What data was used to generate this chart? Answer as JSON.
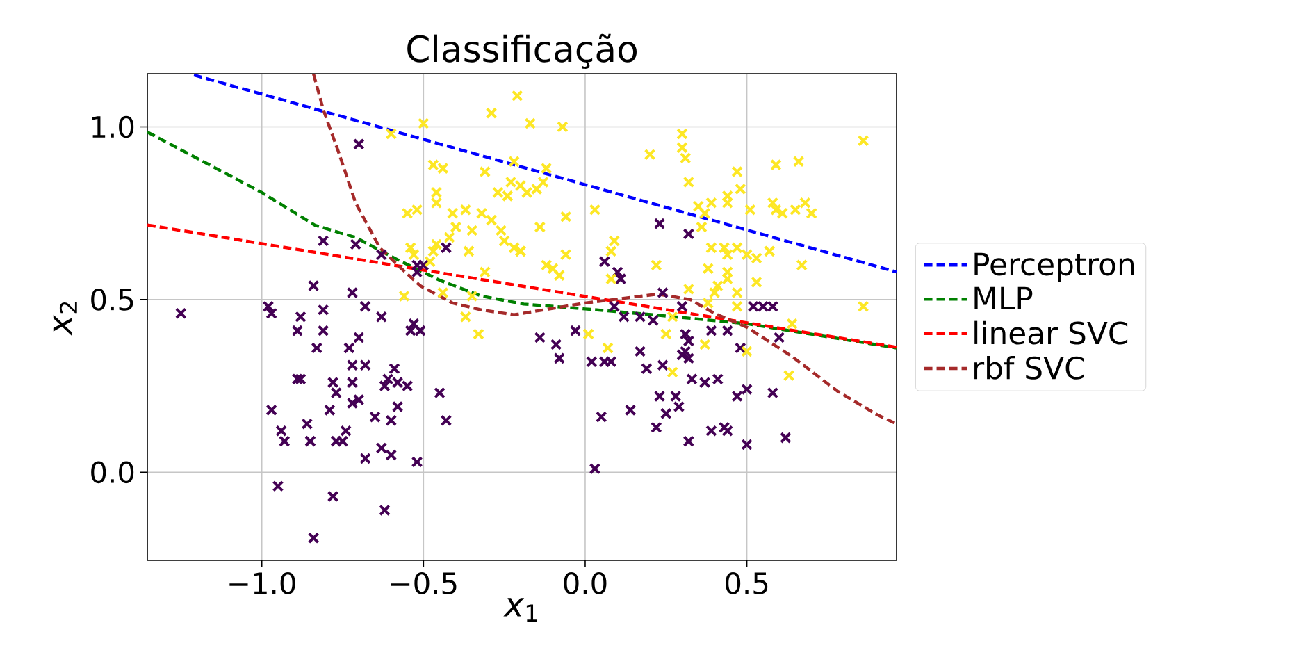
{
  "chart_data": {
    "type": "scatter",
    "title": "Classificação",
    "xlabel": "*x*$_{1}$",
    "ylabel": "*x*$_{2}$",
    "xlim": [
      -1.354,
      0.963
    ],
    "ylim": [
      -0.255,
      1.154
    ],
    "xticks": [
      {
        "value": -1.0,
        "label": "−1.0"
      },
      {
        "value": -0.5,
        "label": "−0.5"
      },
      {
        "value": 0.0,
        "label": "0.0"
      },
      {
        "value": 0.5,
        "label": "0.5"
      }
    ],
    "yticks": [
      {
        "value": 0.0,
        "label": "0.0"
      },
      {
        "value": 0.5,
        "label": "0.5"
      },
      {
        "value": 1.0,
        "label": "1.0"
      }
    ],
    "grid": true,
    "legend": "right",
    "series": [
      {
        "marker": "cross",
        "color": "#440154",
        "x": [
          -1.25,
          -0.98,
          -0.97,
          -0.88,
          -0.81,
          -0.89,
          -0.81,
          -0.68,
          -0.63,
          -0.7,
          -0.73,
          -0.83,
          -0.53,
          -0.54,
          -0.51,
          -0.89,
          -0.88,
          -0.78,
          -0.77,
          -0.72,
          -0.72,
          -0.68,
          -0.59,
          -0.61,
          -0.62,
          -0.58,
          -0.55,
          -0.72,
          -0.7,
          -0.79,
          -0.97,
          -0.86,
          -0.94,
          -0.93,
          -0.85,
          -0.77,
          -0.75,
          -0.74,
          -0.65,
          -0.6,
          -0.58,
          -0.63,
          -0.6,
          -0.68,
          -0.52,
          -0.45,
          -0.43,
          -0.95,
          -0.78,
          -0.62,
          -0.84,
          -0.7,
          -0.81,
          -0.71,
          -0.63,
          -0.43,
          -0.52,
          -0.5,
          -0.52,
          -0.84,
          -0.72,
          -0.14,
          -0.09,
          -0.08,
          -0.03,
          0.02,
          0.06,
          0.08,
          0.09,
          0.12,
          0.17,
          0.19,
          0.17,
          0.21,
          0.24,
          0.31,
          0.32,
          0.3,
          0.32,
          0.31,
          0.33,
          0.37,
          0.41,
          0.39,
          0.44,
          0.23,
          0.28,
          0.29,
          0.25,
          0.22,
          0.14,
          0.05,
          0.32,
          0.39,
          0.43,
          0.44,
          0.5,
          0.47,
          0.5,
          0.58,
          0.62,
          0.6,
          0.48,
          0.03,
          0.52,
          0.55,
          0.58,
          0.23,
          0.32,
          0.06,
          0.1,
          0.11,
          0.24,
          0.3
        ],
        "values": [
          0.46,
          0.48,
          0.46,
          0.45,
          0.47,
          0.41,
          0.41,
          0.48,
          0.45,
          0.39,
          0.36,
          0.36,
          0.43,
          0.41,
          0.41,
          0.27,
          0.27,
          0.26,
          0.23,
          0.26,
          0.31,
          0.31,
          0.3,
          0.27,
          0.25,
          0.26,
          0.25,
          0.2,
          0.21,
          0.18,
          0.18,
          0.14,
          0.12,
          0.09,
          0.09,
          0.09,
          0.09,
          0.12,
          0.16,
          0.15,
          0.19,
          0.07,
          0.05,
          0.04,
          0.03,
          0.23,
          0.15,
          -0.04,
          -0.07,
          -0.11,
          -0.19,
          0.95,
          0.67,
          0.66,
          0.63,
          0.65,
          0.6,
          0.6,
          0.58,
          0.54,
          0.52,
          0.39,
          0.37,
          0.33,
          0.41,
          0.32,
          0.32,
          0.32,
          0.48,
          0.45,
          0.35,
          0.3,
          0.45,
          0.44,
          0.31,
          0.4,
          0.38,
          0.34,
          0.33,
          0.35,
          0.27,
          0.26,
          0.27,
          0.41,
          0.41,
          0.22,
          0.22,
          0.19,
          0.17,
          0.13,
          0.18,
          0.16,
          0.09,
          0.12,
          0.13,
          0.12,
          0.08,
          0.22,
          0.24,
          0.23,
          0.1,
          0.39,
          0.36,
          0.01,
          0.48,
          0.48,
          0.48,
          0.72,
          0.69,
          0.61,
          0.58,
          0.56,
          0.52,
          0.48
        ]
      },
      {
        "marker": "cross",
        "color": "#fde725",
        "x": [
          -0.21,
          -0.29,
          -0.5,
          -0.6,
          -0.47,
          -0.44,
          -0.31,
          -0.46,
          -0.46,
          -0.55,
          -0.52,
          -0.41,
          -0.37,
          -0.4,
          -0.32,
          -0.29,
          -0.35,
          -0.27,
          -0.23,
          -0.24,
          -0.26,
          -0.25,
          -0.22,
          -0.2,
          -0.36,
          -0.42,
          -0.46,
          -0.54,
          -0.53,
          -0.47,
          -0.48,
          -0.31,
          -0.44,
          -0.56,
          -0.35,
          -0.22,
          -0.17,
          -0.07,
          0.3,
          0.3,
          0.31,
          0.2,
          0.32,
          0.47,
          0.59,
          0.66,
          0.86,
          0.48,
          0.44,
          0.44,
          0.39,
          0.35,
          0.37,
          0.51,
          0.58,
          0.59,
          0.61,
          0.65,
          0.68,
          0.7,
          -0.12,
          -0.2,
          -0.18,
          -0.15,
          -0.13,
          -0.06,
          -0.14,
          0.03,
          0.09,
          0.08,
          -0.06,
          -0.12,
          -0.1,
          -0.08,
          -0.2,
          0.22,
          0.36,
          0.39,
          0.43,
          0.47,
          0.5,
          0.44,
          0.53,
          0.57,
          0.67,
          0.38,
          0.44,
          0.44,
          0.53,
          0.32,
          0.41,
          0.47,
          0.4,
          0.86,
          0.08,
          0.01,
          0.07,
          0.25,
          0.27,
          0.37,
          0.5,
          0.27,
          0.63,
          0.64,
          0.47,
          0.38,
          -0.37,
          -0.33
        ],
        "values": [
          1.09,
          1.04,
          1.01,
          0.98,
          0.89,
          0.88,
          0.87,
          0.81,
          0.78,
          0.75,
          0.76,
          0.75,
          0.76,
          0.71,
          0.75,
          0.73,
          0.7,
          0.81,
          0.84,
          0.8,
          0.7,
          0.67,
          0.65,
          0.64,
          0.64,
          0.68,
          0.66,
          0.65,
          0.63,
          0.64,
          0.61,
          0.58,
          0.52,
          0.51,
          0.51,
          0.9,
          1.01,
          1.0,
          0.98,
          0.94,
          0.91,
          0.92,
          0.84,
          0.87,
          0.89,
          0.9,
          0.96,
          0.82,
          0.78,
          0.8,
          0.78,
          0.77,
          0.75,
          0.76,
          0.78,
          0.76,
          0.75,
          0.76,
          0.78,
          0.75,
          0.88,
          0.83,
          0.81,
          0.82,
          0.84,
          0.74,
          0.71,
          0.76,
          0.67,
          0.64,
          0.63,
          0.6,
          0.59,
          0.57,
          0.64,
          0.6,
          0.71,
          0.65,
          0.65,
          0.65,
          0.63,
          0.63,
          0.62,
          0.64,
          0.6,
          0.59,
          0.58,
          0.56,
          0.55,
          0.53,
          0.54,
          0.52,
          0.52,
          0.48,
          0.56,
          0.4,
          0.36,
          0.4,
          0.45,
          0.37,
          0.35,
          0.29,
          0.28,
          0.43,
          0.48,
          0.49,
          0.45,
          0.4
        ]
      },
      {
        "type": "line",
        "name": "Perceptron",
        "color": "#0000ff",
        "marker": "none",
        "line_style": "dashed",
        "x": [
          -1.21,
          0.963
        ],
        "values": [
          1.15,
          0.58
        ]
      },
      {
        "type": "line",
        "name": "MLP",
        "color": "#008000",
        "marker": "none",
        "line_style": "dashed",
        "x": [
          -1.354,
          -1.0,
          -0.835,
          -0.71,
          -0.59,
          -0.45,
          -0.32,
          -0.19,
          0.0,
          0.21,
          0.5,
          0.963
        ],
        "values": [
          0.985,
          0.81,
          0.715,
          0.68,
          0.62,
          0.556,
          0.51,
          0.487,
          0.473,
          0.456,
          0.43,
          0.36
        ]
      },
      {
        "type": "line",
        "name": "linear SVC",
        "color": "#ff0000",
        "marker": "none",
        "line_style": "dashed",
        "x": [
          -1.354,
          0.963
        ],
        "values": [
          0.716,
          0.362
        ]
      },
      {
        "type": "line",
        "name": "rbf SVC",
        "color": "#a52a2a",
        "marker": "none",
        "line_style": "dashed",
        "x": [
          -0.84,
          -0.81,
          -0.76,
          -0.71,
          -0.635,
          -0.58,
          -0.51,
          -0.41,
          -0.32,
          -0.22,
          -0.13,
          0.0,
          0.225,
          0.325,
          0.4,
          0.5,
          0.64,
          0.78,
          0.9,
          0.963
        ],
        "values": [
          1.153,
          1.05,
          0.92,
          0.78,
          0.65,
          0.6,
          0.54,
          0.49,
          0.47,
          0.456,
          0.47,
          0.49,
          0.516,
          0.5,
          0.46,
          0.42,
          0.335,
          0.235,
          0.168,
          0.14
        ]
      }
    ]
  }
}
